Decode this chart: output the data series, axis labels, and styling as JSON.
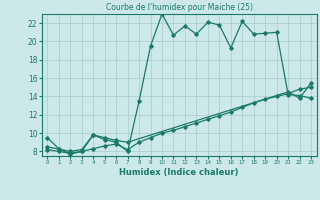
{
  "title": "Courbe de l'humidex pour Maiche (25)",
  "xlabel": "Humidex (Indice chaleur)",
  "bg_color": "#cce8e8",
  "grid_color": "#aacccc",
  "line_color": "#1a7a6a",
  "xlim": [
    -0.5,
    23.5
  ],
  "ylim": [
    7.5,
    23.0
  ],
  "yticks": [
    8,
    10,
    12,
    14,
    16,
    18,
    20,
    22
  ],
  "xticks": [
    0,
    1,
    2,
    3,
    4,
    5,
    6,
    7,
    8,
    9,
    10,
    11,
    12,
    13,
    14,
    15,
    16,
    17,
    18,
    19,
    20,
    21,
    22,
    23
  ],
  "series1_x": [
    0,
    1,
    2,
    3,
    4,
    5,
    6,
    7,
    8,
    9,
    10,
    11,
    12,
    13,
    14,
    15,
    16,
    17,
    18,
    19,
    20,
    21,
    22,
    23
  ],
  "series1_y": [
    9.5,
    8.3,
    7.7,
    8.0,
    9.8,
    9.3,
    9.0,
    8.0,
    13.5,
    19.5,
    23.0,
    20.7,
    21.7,
    20.8,
    22.1,
    21.8,
    19.3,
    22.2,
    20.8,
    20.9,
    21.0,
    14.2,
    14.1,
    13.8
  ],
  "series2_x": [
    0,
    2,
    3,
    4,
    5,
    6,
    7,
    21,
    22,
    23
  ],
  "series2_y": [
    8.5,
    8.0,
    8.2,
    9.8,
    9.5,
    9.2,
    9.0,
    14.5,
    13.8,
    15.5
  ],
  "series3_x": [
    0,
    1,
    2,
    3,
    4,
    5,
    6,
    7,
    8,
    9,
    10,
    11,
    12,
    13,
    14,
    15,
    16,
    17,
    18,
    19,
    20,
    21,
    22,
    23
  ],
  "series3_y": [
    8.2,
    8.0,
    7.8,
    8.0,
    8.3,
    8.6,
    8.8,
    8.2,
    9.0,
    9.5,
    10.0,
    10.3,
    10.7,
    11.1,
    11.5,
    11.9,
    12.3,
    12.8,
    13.3,
    13.7,
    14.0,
    14.3,
    14.8,
    15.0
  ]
}
